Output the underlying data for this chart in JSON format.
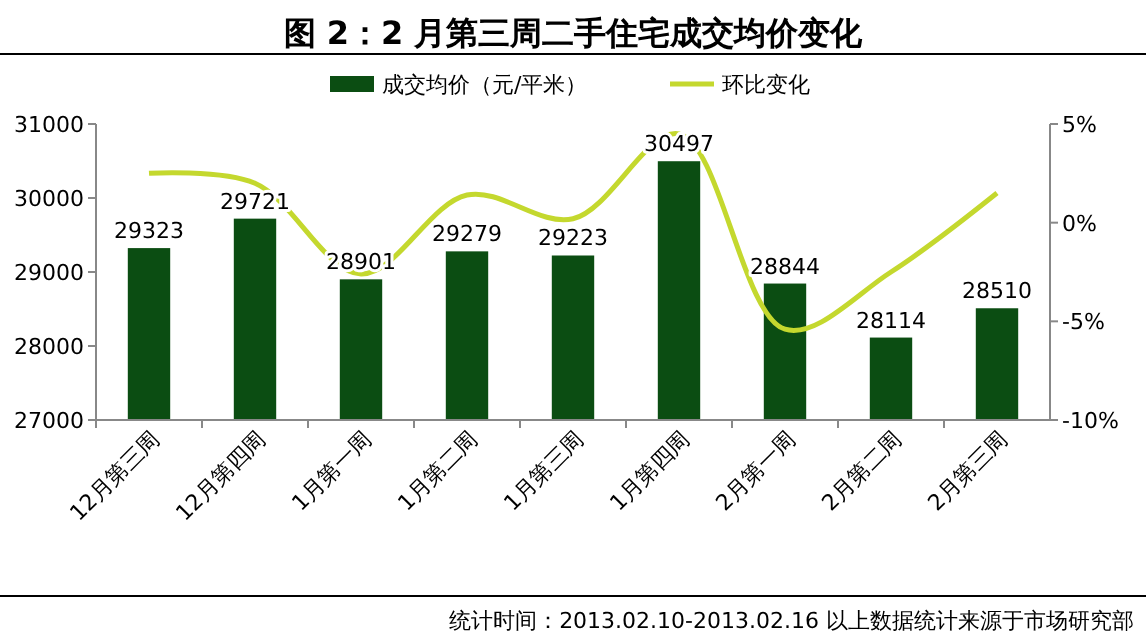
{
  "chart_data": {
    "type": "bar",
    "title": "图 2：2 月第三周二手住宅成交均价变化",
    "categories": [
      "12月第三周",
      "12月第四周",
      "1月第一周",
      "1月第二周",
      "1月第三周",
      "1月第四周",
      "2月第一周",
      "2月第二周",
      "2月第三周"
    ],
    "series": [
      {
        "name": "成交均价（元/平米）",
        "color": "#0b4d12",
        "values": [
          29323,
          29721,
          28901,
          29279,
          29223,
          30497,
          28844,
          28114,
          28510
        ],
        "value_labels": [
          "29323",
          "29721",
          "28901",
          "29279",
          "29223",
          "30497",
          "28844",
          "28114",
          "28510"
        ]
      },
      {
        "name": "环比变化",
        "type": "line",
        "axis": "y2",
        "color": "#c4d82e",
        "values": [
          2.5,
          2.0,
          -2.6,
          1.4,
          0.2,
          4.5,
          -5.4,
          -2.5,
          1.5
        ]
      }
    ],
    "ylim": [
      27000,
      31000
    ],
    "yticks": [
      27000,
      28000,
      29000,
      30000,
      31000
    ],
    "y2lim": [
      -10,
      5
    ],
    "y2ticks": [
      {
        "value": -10,
        "label": "-10%"
      },
      {
        "value": -5,
        "label": "-5%"
      },
      {
        "value": 0,
        "label": "0%"
      },
      {
        "value": 5,
        "label": "5%"
      }
    ],
    "legend": "top",
    "grid": false,
    "marker": "none",
    "annotations": [
      "统计时间：2013.02.10-2013.02.16 以上数据统计来源于市场研究部"
    ]
  }
}
